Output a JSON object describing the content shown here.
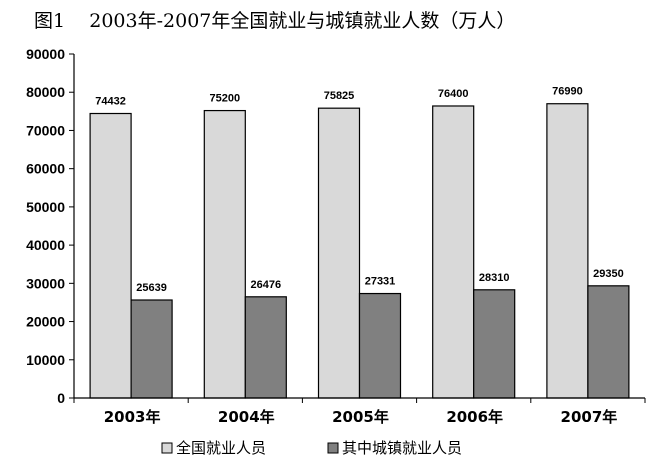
{
  "chart_data": {
    "type": "bar",
    "title": "图1    2003年-2007年全国就业与城镇就业人数（万人）",
    "categories": [
      "2003年",
      "2004年",
      "2005年",
      "2006年",
      "2007年"
    ],
    "series": [
      {
        "name": "全国就业人员",
        "values": [
          74432,
          75200,
          75825,
          76400,
          76990
        ],
        "color": "#d9d9d9"
      },
      {
        "name": "其中城镇就业人员",
        "values": [
          25639,
          26476,
          27331,
          28310,
          29350
        ],
        "color": "#808080"
      }
    ],
    "ylim": [
      0,
      90000
    ],
    "yticks": [
      "0",
      "10000",
      "20000",
      "30000",
      "40000",
      "50000",
      "60000",
      "70000",
      "80000",
      "90000"
    ],
    "grid": false,
    "legend_position": "bottom"
  }
}
